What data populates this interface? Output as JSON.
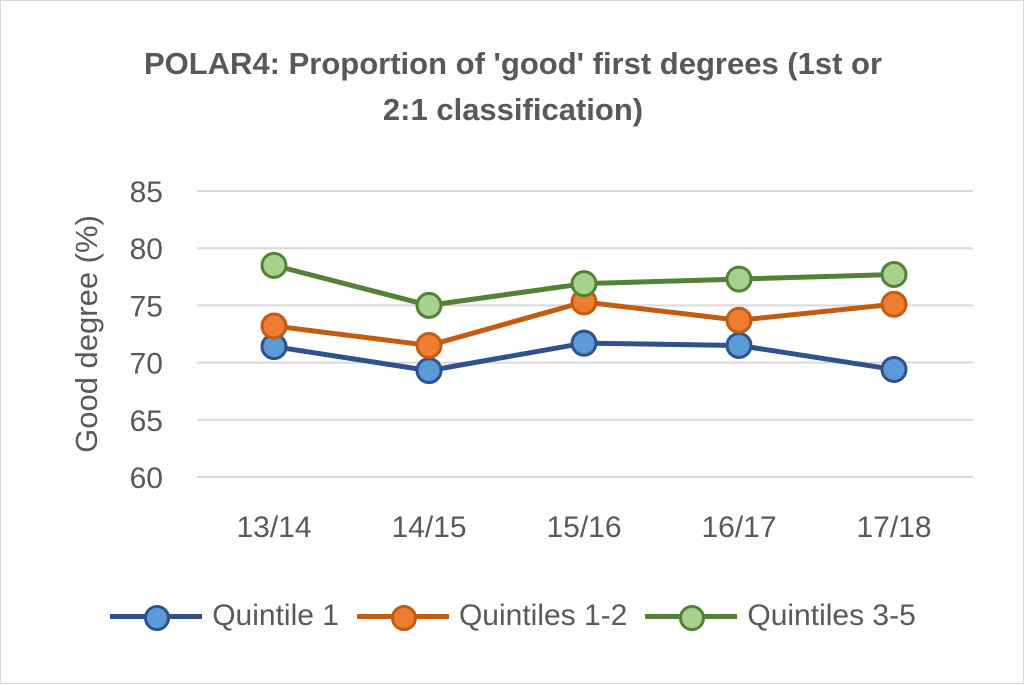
{
  "chart_data": {
    "type": "line",
    "title_lines": [
      "POLAR4: Proportion of 'good' first degrees (1st or",
      "2:1 classification)"
    ],
    "ylabel": "Good degree (%)",
    "xlabel": "",
    "categories": [
      "13/14",
      "14/15",
      "15/16",
      "16/17",
      "17/18"
    ],
    "ylim": [
      60,
      85
    ],
    "yticks": [
      60,
      65,
      70,
      75,
      80,
      85
    ],
    "grid": true,
    "legend_position": "bottom",
    "series": [
      {
        "name": "Quintile 1",
        "values": [
          71.4,
          69.3,
          71.7,
          71.5,
          69.4
        ],
        "line_color": "#2f528f",
        "marker_color": "#5b9bd5"
      },
      {
        "name": "Quintiles 1-2",
        "values": [
          73.2,
          71.5,
          75.3,
          73.7,
          75.1
        ],
        "line_color": "#c55a11",
        "marker_color": "#ed7d31"
      },
      {
        "name": "Quintiles 3-5",
        "values": [
          78.5,
          75.0,
          76.9,
          77.3,
          77.7
        ],
        "line_color": "#548235",
        "marker_color": "#a9d18e"
      }
    ]
  }
}
